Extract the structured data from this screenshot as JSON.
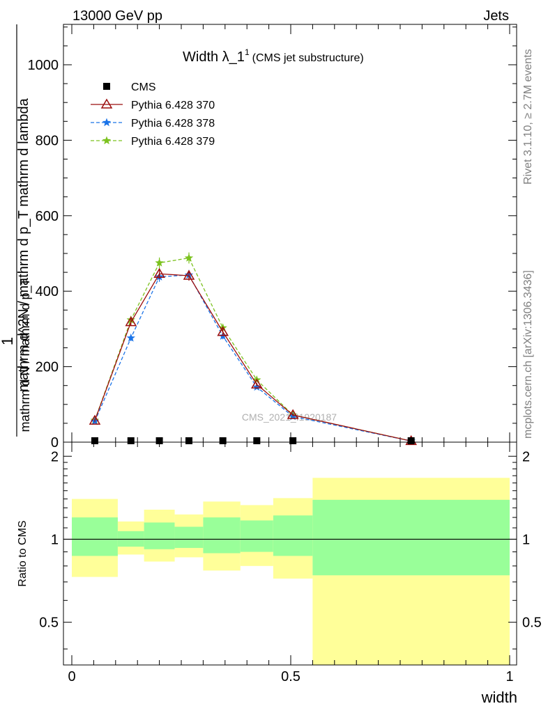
{
  "header": {
    "energy_label": "13000 GeV pp",
    "category_label": "Jets"
  },
  "side_labels": {
    "rivet": "Rivet 3.1.10, ≥ 2.7M events",
    "mcplots": "mcplots.cern.ch [arXiv:1306.3436]"
  },
  "watermark": "CMS_2021_I1920187",
  "colors": {
    "cms": "#000000",
    "pythia_370": "#9b0d0d",
    "pythia_378": "#1a73e8",
    "pythia_379": "#7cc21f",
    "band_outer": "#ffff99",
    "band_inner": "#99ff99"
  },
  "chart_data": [
    {
      "type": "line",
      "title_main": "Width λ_1",
      "title_sup": "1",
      "title_note": "(CMS jet substructure)",
      "ylabel_numer": "1",
      "ylabel_denom_line1": "mathrm d N / mathrm d p_T mathrm d p_T mathrm d lambda",
      "ylabel_denom_line2": "mathrm d N / mathrm d p_T",
      "ylabel_full": "mathrm d^2N / mathrm d p_T mathrm d lambda",
      "ylim": [
        0,
        1110
      ],
      "yticks": [
        0,
        200,
        400,
        600,
        800,
        1000
      ],
      "ytick_labels": [
        "0",
        "200",
        "400",
        "600",
        "800",
        "1000"
      ],
      "xlim": [
        -0.02,
        1.0
      ],
      "legend_position": "top-left",
      "series": [
        {
          "name": "CMS",
          "marker": "square",
          "x": [
            0.0525,
            0.135,
            0.2,
            0.2675,
            0.345,
            0.4225,
            0.505,
            0.775
          ],
          "y": [
            1.2,
            1.2,
            1.2,
            1.2,
            1.2,
            1.2,
            1.2,
            1.2
          ]
        },
        {
          "name": "Pythia 6.428 370",
          "marker": "triangle-open",
          "x": [
            0.0525,
            0.135,
            0.2,
            0.2675,
            0.345,
            0.4225,
            0.505,
            0.775
          ],
          "y": [
            57,
            318,
            446,
            441,
            292,
            153,
            72,
            3
          ]
        },
        {
          "name": "Pythia 6.428 378",
          "marker": "star",
          "x": [
            0.0525,
            0.135,
            0.2,
            0.2675,
            0.345,
            0.4225,
            0.505,
            0.775
          ],
          "y": [
            55,
            276,
            438,
            443,
            281,
            146,
            68,
            3
          ]
        },
        {
          "name": "Pythia 6.428 379",
          "marker": "star",
          "x": [
            0.0525,
            0.135,
            0.2,
            0.2675,
            0.345,
            0.4225,
            0.505,
            0.775
          ],
          "y": [
            58,
            324,
            475,
            488,
            303,
            165,
            72,
            3
          ]
        }
      ]
    },
    {
      "type": "area",
      "ylabel": "Ratio to CMS",
      "xlabel": "width",
      "xlim": [
        -0.02,
        1.0
      ],
      "xticks": [
        0,
        0.5,
        1
      ],
      "xtick_labels": [
        "0",
        "0.5",
        "1"
      ],
      "ylim": [
        0.35,
        2.25
      ],
      "yticks": [
        0.5,
        1,
        2
      ],
      "ytick_labels": [
        "0.5",
        "1",
        "2"
      ],
      "reference_line": 1,
      "bins": [
        {
          "x0": 0.0,
          "x1": 0.105,
          "outer": [
            0.73,
            1.4
          ],
          "inner": [
            0.87,
            1.2
          ]
        },
        {
          "x0": 0.105,
          "x1": 0.165,
          "outer": [
            0.88,
            1.16
          ],
          "inner": [
            0.94,
            1.07
          ]
        },
        {
          "x0": 0.165,
          "x1": 0.235,
          "outer": [
            0.83,
            1.28
          ],
          "inner": [
            0.92,
            1.15
          ]
        },
        {
          "x0": 0.235,
          "x1": 0.3,
          "outer": [
            0.86,
            1.23
          ],
          "inner": [
            0.93,
            1.11
          ]
        },
        {
          "x0": 0.3,
          "x1": 0.385,
          "outer": [
            0.77,
            1.37
          ],
          "inner": [
            0.89,
            1.2
          ]
        },
        {
          "x0": 0.385,
          "x1": 0.46,
          "outer": [
            0.8,
            1.33
          ],
          "inner": [
            0.9,
            1.17
          ]
        },
        {
          "x0": 0.46,
          "x1": 0.55,
          "outer": [
            0.72,
            1.41
          ],
          "inner": [
            0.87,
            1.22
          ]
        },
        {
          "x0": 0.55,
          "x1": 1.0,
          "outer": [
            0.35,
            1.67
          ],
          "inner": [
            0.74,
            1.39
          ]
        }
      ]
    }
  ]
}
